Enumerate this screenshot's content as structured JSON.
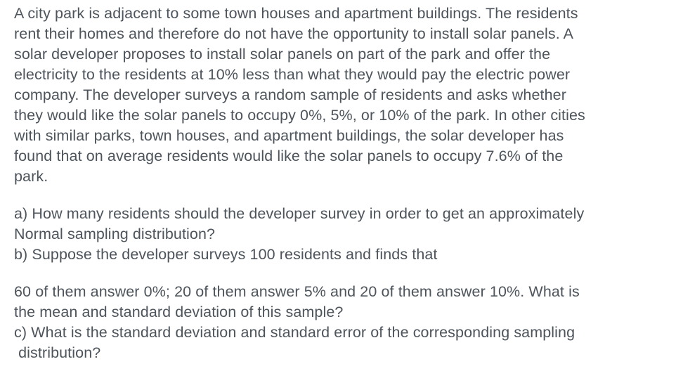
{
  "page": {
    "background_color": "#ffffff",
    "text_color": "#4d545b"
  },
  "problem": {
    "intro_lines": [
      "A city park is adjacent to some town houses and apartment buildings. The residents",
      "rent their homes and therefore do not have the opportunity to install solar panels. A",
      "solar developer proposes to install solar panels on part of the park and offer the",
      "electricity to the residents at 10% less than what they would pay the electric power",
      "company. The developer surveys a random sample of residents and asks whether",
      "they would like the solar panels to occupy 0%, 5%, or 10% of the park. In other cities",
      "with similar parks, town houses, and apartment buildings, the solar developer has",
      "found that on average residents would like the solar panels to occupy 7.6% of the",
      "park."
    ],
    "part_ab_lines": [
      "a) How many residents should the developer survey in order to get an approximately",
      "Normal sampling distribution?",
      "b) Suppose the developer surveys 100 residents and finds that"
    ],
    "part_bc_lines": [
      "60 of them answer 0%; 20 of them answer 5% and 20 of them answer 10%. What is",
      "the mean and standard deviation of this sample?",
      "c) What is the standard deviation and standard error of the corresponding sampling",
      " distribution?"
    ]
  }
}
